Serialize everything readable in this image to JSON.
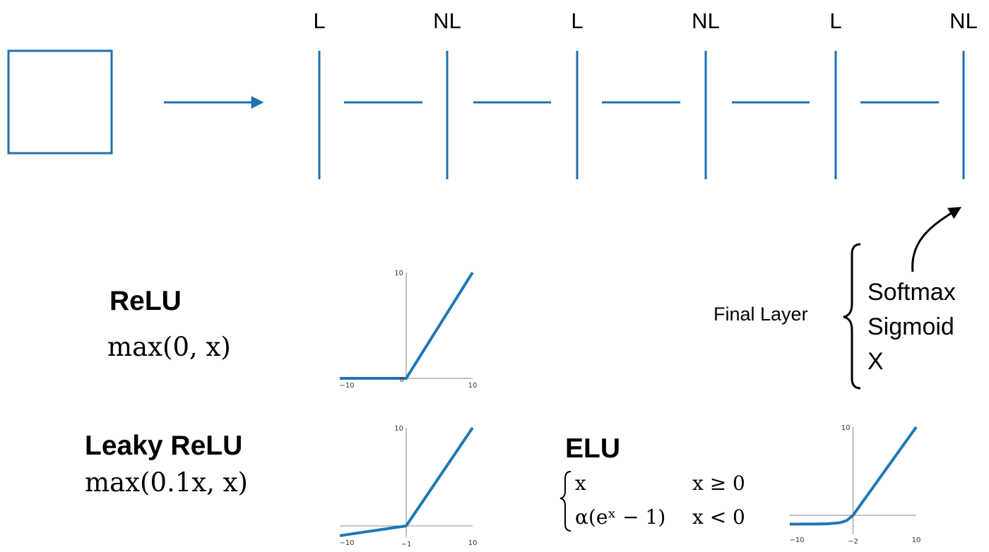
{
  "network": {
    "layer_labels": [
      "L",
      "NL",
      "L",
      "NL",
      "L",
      "NL"
    ]
  },
  "final_layer": {
    "label": "Final Layer",
    "options": [
      "Softmax",
      "Sigmoid",
      "X"
    ]
  },
  "activations": {
    "relu": {
      "name": "ReLU",
      "formula": "max(0, x)"
    },
    "leaky_relu": {
      "name": "Leaky ReLU",
      "formula": "max(0.1x, x)"
    },
    "elu": {
      "name": "ELU",
      "case1_expr": "x",
      "case1_cond": "x ≥ 0",
      "case2_expr": "α(eˣ − 1)",
      "case2_cond": "x < 0"
    }
  },
  "chart_data": [
    {
      "type": "line",
      "name": "relu-plot",
      "function": "relu",
      "xlim": [
        -10,
        10
      ],
      "ylim": [
        0,
        10
      ],
      "x_ticks": [
        "−10",
        "10"
      ],
      "y_ticks": [
        "10"
      ],
      "origin_label": "0",
      "points": [
        [
          -10,
          0
        ],
        [
          0,
          0
        ],
        [
          10,
          10
        ]
      ]
    },
    {
      "type": "line",
      "name": "leaky-relu-plot",
      "function": "leaky_relu",
      "xlim": [
        -10,
        10
      ],
      "ylim": [
        -1,
        10
      ],
      "x_ticks": [
        "−10",
        "−1",
        "10"
      ],
      "y_ticks": [
        "10"
      ],
      "points": [
        [
          -10,
          -1
        ],
        [
          0,
          0
        ],
        [
          10,
          10
        ]
      ]
    },
    {
      "type": "line",
      "name": "elu-plot",
      "function": "elu",
      "xlim": [
        -10,
        10
      ],
      "ylim": [
        -2,
        10
      ],
      "x_ticks": [
        "−10",
        "−2",
        "10"
      ],
      "y_ticks": [
        "10"
      ],
      "points": [
        [
          -10,
          -1.0
        ],
        [
          -6,
          -0.99
        ],
        [
          -4,
          -0.96
        ],
        [
          -3,
          -0.9
        ],
        [
          -2,
          -0.82
        ],
        [
          -1,
          -0.6
        ],
        [
          0,
          0
        ],
        [
          10,
          10
        ]
      ]
    }
  ],
  "colors": {
    "accent": "#1f6fad",
    "plot_line": "#1f77b4",
    "axis": "#888888",
    "text": "#000000"
  }
}
